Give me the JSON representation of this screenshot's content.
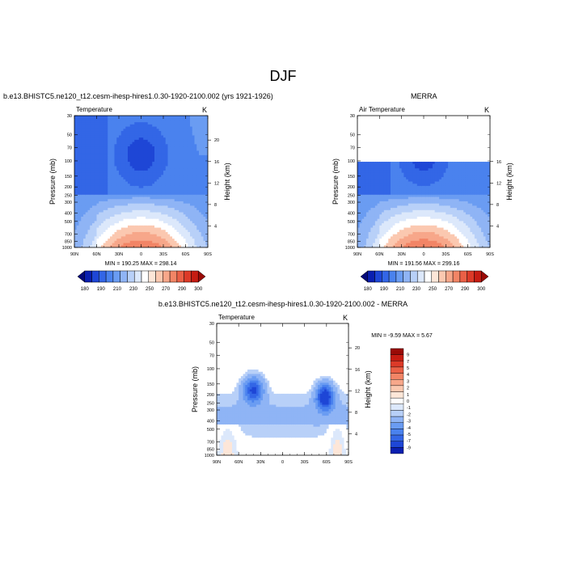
{
  "figure": {
    "title": "DJF"
  },
  "colors": {
    "diff_scale": [
      "#050a7a",
      "#0a1fb0",
      "#1e46d6",
      "#3366e6",
      "#4a82ee",
      "#6a9cf2",
      "#8fb4f5",
      "#b8d0f8",
      "#dce8fb",
      "#ffffff",
      "#fde6d8",
      "#fbc8b0",
      "#f7a78a",
      "#f28566",
      "#ea6046",
      "#dc3a28",
      "#c61c12",
      "#9a0a06"
    ],
    "temp_scale": [
      "#050a7a",
      "#0a1fb0",
      "#1e46d6",
      "#3366e6",
      "#4a82ee",
      "#6a9cf2",
      "#8fb4f5",
      "#b8d0f8",
      "#dce8fb",
      "#ffffff",
      "#fde6d8",
      "#fbc8b0",
      "#f7a78a",
      "#f28566",
      "#ea6046",
      "#dc3a28",
      "#c61c12",
      "#9a0a06"
    ]
  },
  "chart_data": [
    {
      "type": "heatmap",
      "title": "b.e13.BHISTC5.ne120_t12.cesm-ihesp-hires1.0.30-1920-2100.002 (yrs 1921-1926)",
      "left_label": "Temperature",
      "unit_label": "K",
      "xlabel": "",
      "ylabel": "Pressure (mb)",
      "y2label": "Height (km)",
      "x_ticks": [
        "90N",
        "60N",
        "30N",
        "0",
        "30S",
        "60S",
        "90S"
      ],
      "x_range": [
        90,
        -90
      ],
      "y_ticks": [
        30,
        50,
        70,
        100,
        150,
        200,
        250,
        300,
        400,
        500,
        700,
        850,
        1000
      ],
      "y_range": [
        30,
        1000
      ],
      "y_scale": "log",
      "height_ticks": [
        4,
        8,
        12,
        16,
        20
      ],
      "stats": "MIN = 190.25   MAX = 298.14",
      "min": 190.25,
      "max": 298.14,
      "colorbar_labels": [
        "180",
        "190",
        "210",
        "230",
        "250",
        "270",
        "290",
        "300"
      ],
      "colorbar_levels": [
        180,
        190,
        200,
        210,
        220,
        230,
        240,
        250,
        260,
        270,
        280,
        290,
        300
      ],
      "field": "model"
    },
    {
      "type": "heatmap",
      "title": "MERRA",
      "left_label": "Air Temperature",
      "unit_label": "K",
      "xlabel": "",
      "ylabel": "Pressure (mb)",
      "y2label": "Height (km)",
      "x_ticks": [
        "90N",
        "60N",
        "30N",
        "0",
        "30S",
        "60S",
        "90S"
      ],
      "x_range": [
        90,
        -90
      ],
      "y_ticks": [
        30,
        50,
        70,
        100,
        150,
        200,
        250,
        300,
        400,
        500,
        700,
        850,
        1000
      ],
      "y_range": [
        30,
        1000
      ],
      "y_scale": "log",
      "height_ticks": [
        4,
        8,
        12,
        16
      ],
      "data_top_pressure": 100,
      "stats": "MIN = 191.56   MAX = 299.16",
      "min": 191.56,
      "max": 299.16,
      "colorbar_labels": [
        "180",
        "190",
        "210",
        "230",
        "250",
        "270",
        "290",
        "300"
      ],
      "colorbar_levels": [
        180,
        190,
        200,
        210,
        220,
        230,
        240,
        250,
        260,
        270,
        280,
        290,
        300
      ],
      "field": "merra"
    },
    {
      "type": "heatmap",
      "title": "b.e13.BHISTC5.ne120_t12.cesm-ihesp-hires1.0.30-1920-2100.002 - MERRA",
      "left_label": "Temperature",
      "unit_label": "K",
      "xlabel": "",
      "ylabel": "Pressure (mb)",
      "y2label": "Height (km)",
      "x_ticks": [
        "90N",
        "60N",
        "30N",
        "0",
        "30S",
        "60S",
        "90S"
      ],
      "x_range": [
        90,
        -90
      ],
      "y_ticks": [
        30,
        50,
        70,
        100,
        150,
        200,
        250,
        300,
        400,
        500,
        700,
        850,
        1000
      ],
      "y_range": [
        30,
        1000
      ],
      "y_scale": "log",
      "height_ticks": [
        4,
        8,
        12,
        16,
        20
      ],
      "data_top_pressure": 100,
      "stats": "MIN =  -9.59   MAX =   5.67",
      "min": -9.59,
      "max": 5.67,
      "colorbar_labels": [
        "9",
        "7",
        "5",
        "4",
        "3",
        "2",
        "1",
        "0",
        "-1",
        "-2",
        "-3",
        "-4",
        "-5",
        "-7",
        "-9"
      ],
      "colorbar_levels": [
        9,
        7,
        5,
        4,
        3,
        2,
        1,
        0,
        -1,
        -2,
        -3,
        -4,
        -5,
        -7,
        -9
      ],
      "field": "diff"
    }
  ]
}
